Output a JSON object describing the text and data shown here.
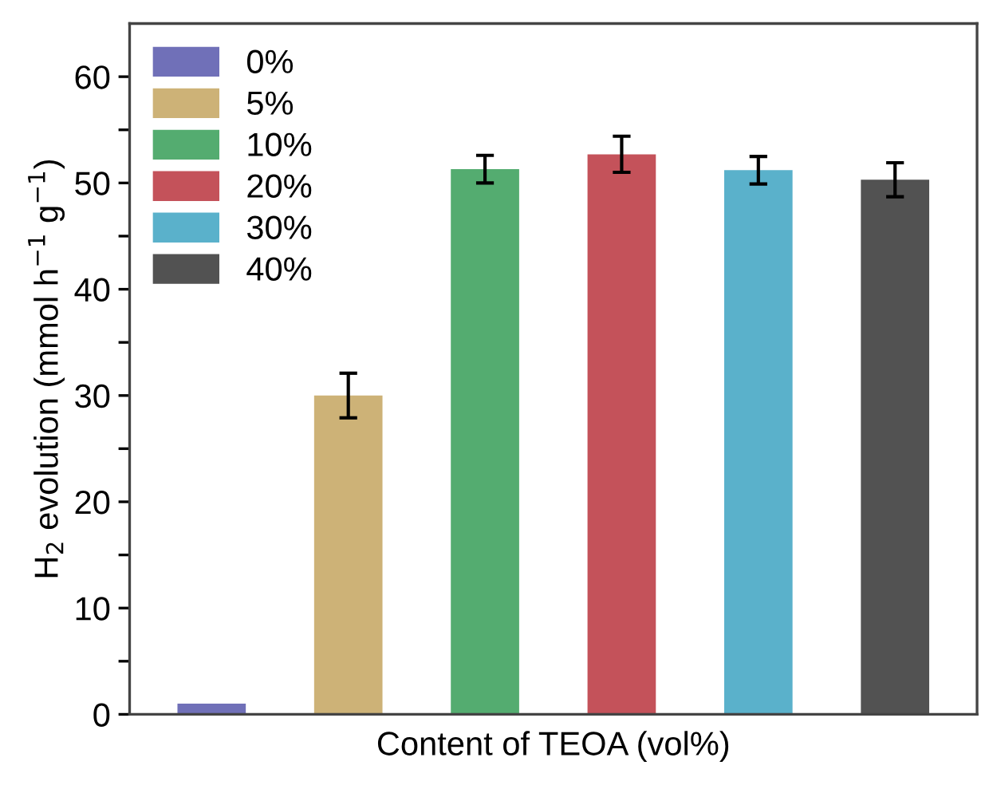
{
  "chart_data": {
    "type": "bar",
    "xlabel": "Content of TEOA (vol%)",
    "ylabel": "H$_{2}$ evolution (mmol h$^{−1}$ g$^{−1}$)",
    "categories": [
      null,
      null,
      null,
      null,
      null,
      null
    ],
    "series": [
      {
        "name": "0%",
        "color": "#7070b8",
        "values": [
          1.0,
          null,
          null,
          null,
          null,
          null
        ],
        "errors": [
          null,
          null,
          null,
          null,
          null,
          null
        ]
      },
      {
        "name": "5%",
        "color": "#cdb277",
        "values": [
          null,
          30.0,
          null,
          null,
          null,
          null
        ],
        "errors": [
          null,
          2.1,
          null,
          null,
          null,
          null
        ]
      },
      {
        "name": "10%",
        "color": "#54ac70",
        "values": [
          null,
          null,
          51.3,
          null,
          null,
          null
        ],
        "errors": [
          null,
          null,
          1.3,
          null,
          null,
          null
        ]
      },
      {
        "name": "20%",
        "color": "#c4525a",
        "values": [
          null,
          null,
          null,
          52.7,
          null,
          null
        ],
        "errors": [
          null,
          null,
          null,
          1.7,
          null,
          null
        ]
      },
      {
        "name": "30%",
        "color": "#5ab1cb",
        "values": [
          null,
          null,
          null,
          null,
          51.2,
          null
        ],
        "errors": [
          null,
          null,
          null,
          null,
          1.3,
          null
        ]
      },
      {
        "name": "40%",
        "color": "#525252",
        "values": [
          null,
          null,
          null,
          null,
          null,
          50.3
        ],
        "errors": [
          null,
          null,
          null,
          null,
          null,
          1.6
        ]
      }
    ],
    "ylim": [
      0,
      65
    ],
    "yticks": [
      0,
      {
        "value": 5,
        "label": null
      },
      10,
      {
        "value": 15,
        "label": null
      },
      20,
      {
        "value": 25,
        "label": null
      },
      30,
      {
        "value": 35,
        "label": null
      },
      40,
      {
        "value": 45,
        "label": null
      },
      50,
      {
        "value": 55,
        "label": null
      },
      60
    ],
    "legend": "top left",
    "grid": false
  }
}
